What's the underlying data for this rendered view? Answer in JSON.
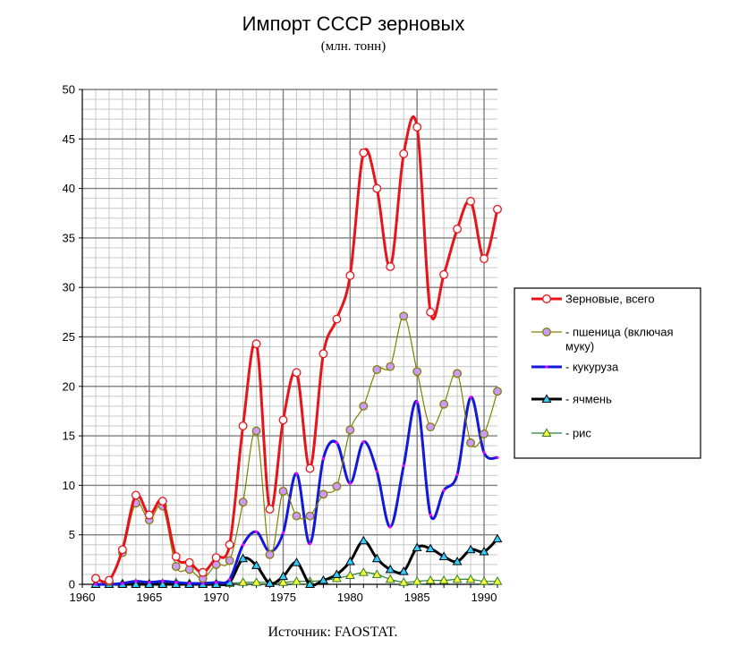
{
  "chart_data": {
    "type": "line",
    "title": "Импорт СССР зерновых",
    "subtitle": "(млн. тонн)",
    "source": "Источник: FAOSTAT.",
    "xlim": [
      1960,
      1991
    ],
    "ylim": [
      0,
      50
    ],
    "xticks": [
      1960,
      1965,
      1970,
      1975,
      1980,
      1985,
      1990
    ],
    "yticks": [
      0,
      5,
      10,
      15,
      20,
      25,
      30,
      35,
      40,
      45,
      50
    ],
    "grid": true,
    "legend_position": "right",
    "years": [
      1961,
      1962,
      1963,
      1964,
      1965,
      1966,
      1967,
      1968,
      1969,
      1970,
      1971,
      1972,
      1973,
      1974,
      1975,
      1976,
      1977,
      1978,
      1979,
      1980,
      1981,
      1982,
      1983,
      1984,
      1985,
      1986,
      1987,
      1988,
      1989,
      1990,
      1991
    ],
    "series": [
      {
        "name": "Зерновые, всего",
        "color": "#e8141c",
        "marker": "circle",
        "marker_fill": "#ffffff",
        "stroke_width": 3,
        "values": [
          0.6,
          0.4,
          3.5,
          9.0,
          7.0,
          8.4,
          2.8,
          2.2,
          1.2,
          2.7,
          4.0,
          16.0,
          24.3,
          7.6,
          16.6,
          21.4,
          11.7,
          23.3,
          26.8,
          31.2,
          43.6,
          40.0,
          32.1,
          43.5,
          46.2,
          27.5,
          31.3,
          35.9,
          38.7,
          32.9,
          37.9
        ]
      },
      {
        "name": "- пшеница (включая муку)",
        "color": "#808000",
        "marker": "circle",
        "marker_fill": "#cc99ff",
        "stroke_width": 1.2,
        "values": [
          0.6,
          0.3,
          3.2,
          8.2,
          6.5,
          7.9,
          1.8,
          1.5,
          0.6,
          2.0,
          2.4,
          8.3,
          15.5,
          3.0,
          9.4,
          6.9,
          6.9,
          9.1,
          9.9,
          15.6,
          18.0,
          21.7,
          22.0,
          27.1,
          21.5,
          15.9,
          18.2,
          21.3,
          14.3,
          15.2,
          19.5
        ]
      },
      {
        "name": "- кукуруза",
        "color": "#1418d8",
        "marker": "dot",
        "marker_fill": "#ff00ff",
        "stroke_width": 3,
        "values": [
          0.0,
          0.0,
          0.1,
          0.3,
          0.2,
          0.3,
          0.2,
          0.1,
          0.1,
          0.2,
          0.5,
          4.0,
          5.3,
          3.3,
          5.2,
          11.2,
          4.1,
          12.7,
          14.3,
          10.2,
          14.4,
          11.4,
          5.8,
          12.0,
          18.4,
          7.0,
          9.5,
          11.1,
          18.9,
          13.3,
          12.8
        ]
      },
      {
        "name": "- ячмень",
        "color": "#000000",
        "marker": "triangle",
        "marker_fill": "#33ccff",
        "stroke_width": 3,
        "values": [
          0.0,
          0.0,
          0.0,
          0.0,
          0.0,
          0.0,
          0.0,
          0.0,
          0.0,
          0.0,
          0.2,
          2.6,
          1.9,
          0.1,
          0.8,
          2.2,
          0.0,
          0.4,
          1.0,
          2.3,
          4.4,
          2.6,
          1.5,
          1.3,
          3.7,
          3.6,
          2.8,
          2.3,
          3.5,
          3.3,
          4.6
        ]
      },
      {
        "name": "- рис",
        "color": "#2e7d32",
        "marker": "triangle",
        "marker_fill": "#ffff33",
        "stroke_width": 1.2,
        "values": [
          0.0,
          0.0,
          0.1,
          0.1,
          0.1,
          0.1,
          0.2,
          0.1,
          0.1,
          0.1,
          0.1,
          0.2,
          0.2,
          0.2,
          0.2,
          0.3,
          0.3,
          0.4,
          0.6,
          0.9,
          1.2,
          1.0,
          0.5,
          0.2,
          0.3,
          0.4,
          0.4,
          0.5,
          0.5,
          0.3,
          0.3
        ]
      }
    ]
  }
}
